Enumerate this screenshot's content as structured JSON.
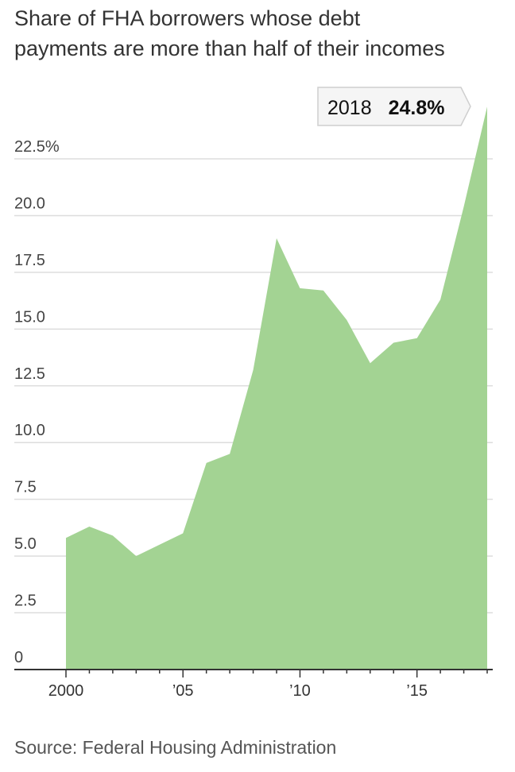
{
  "title_line1": "Share of FHA borrowers whose debt",
  "title_line2": "payments are more than half of their incomes",
  "source": "Source: Federal Housing Administration",
  "colors": {
    "area": "#a3d393",
    "grid": "#dddddd",
    "axis": "#333333"
  },
  "chart_data": {
    "type": "area",
    "title": "Share of FHA borrowers whose debt payments are more than half of their incomes",
    "xlabel": "",
    "ylabel": "",
    "ylim": [
      0,
      25.5
    ],
    "yticks": [
      0,
      2.5,
      5.0,
      7.5,
      10.0,
      12.5,
      15.0,
      17.5,
      20.0,
      22.5
    ],
    "ytick_labels": [
      "0",
      "2.5",
      "5.0",
      "7.5",
      "10.0",
      "12.5",
      "15.0",
      "17.5",
      "20.0",
      "22.5%"
    ],
    "xticks": [
      2000,
      2005,
      2010,
      2015
    ],
    "xtick_labels": [
      "2000",
      "’05",
      "’10",
      "’15"
    ],
    "grid": true,
    "x": [
      2000,
      2001,
      2002,
      2003,
      2004,
      2005,
      2006,
      2007,
      2008,
      2009,
      2010,
      2011,
      2012,
      2013,
      2014,
      2015,
      2016,
      2017,
      2018
    ],
    "values": [
      5.8,
      6.3,
      5.9,
      5.0,
      5.5,
      6.0,
      9.1,
      9.5,
      13.2,
      19.0,
      16.8,
      16.7,
      15.4,
      13.5,
      14.4,
      14.6,
      16.3,
      20.4,
      24.8
    ],
    "annotation": {
      "year_label": "2018",
      "value_label": "24.8%"
    }
  }
}
